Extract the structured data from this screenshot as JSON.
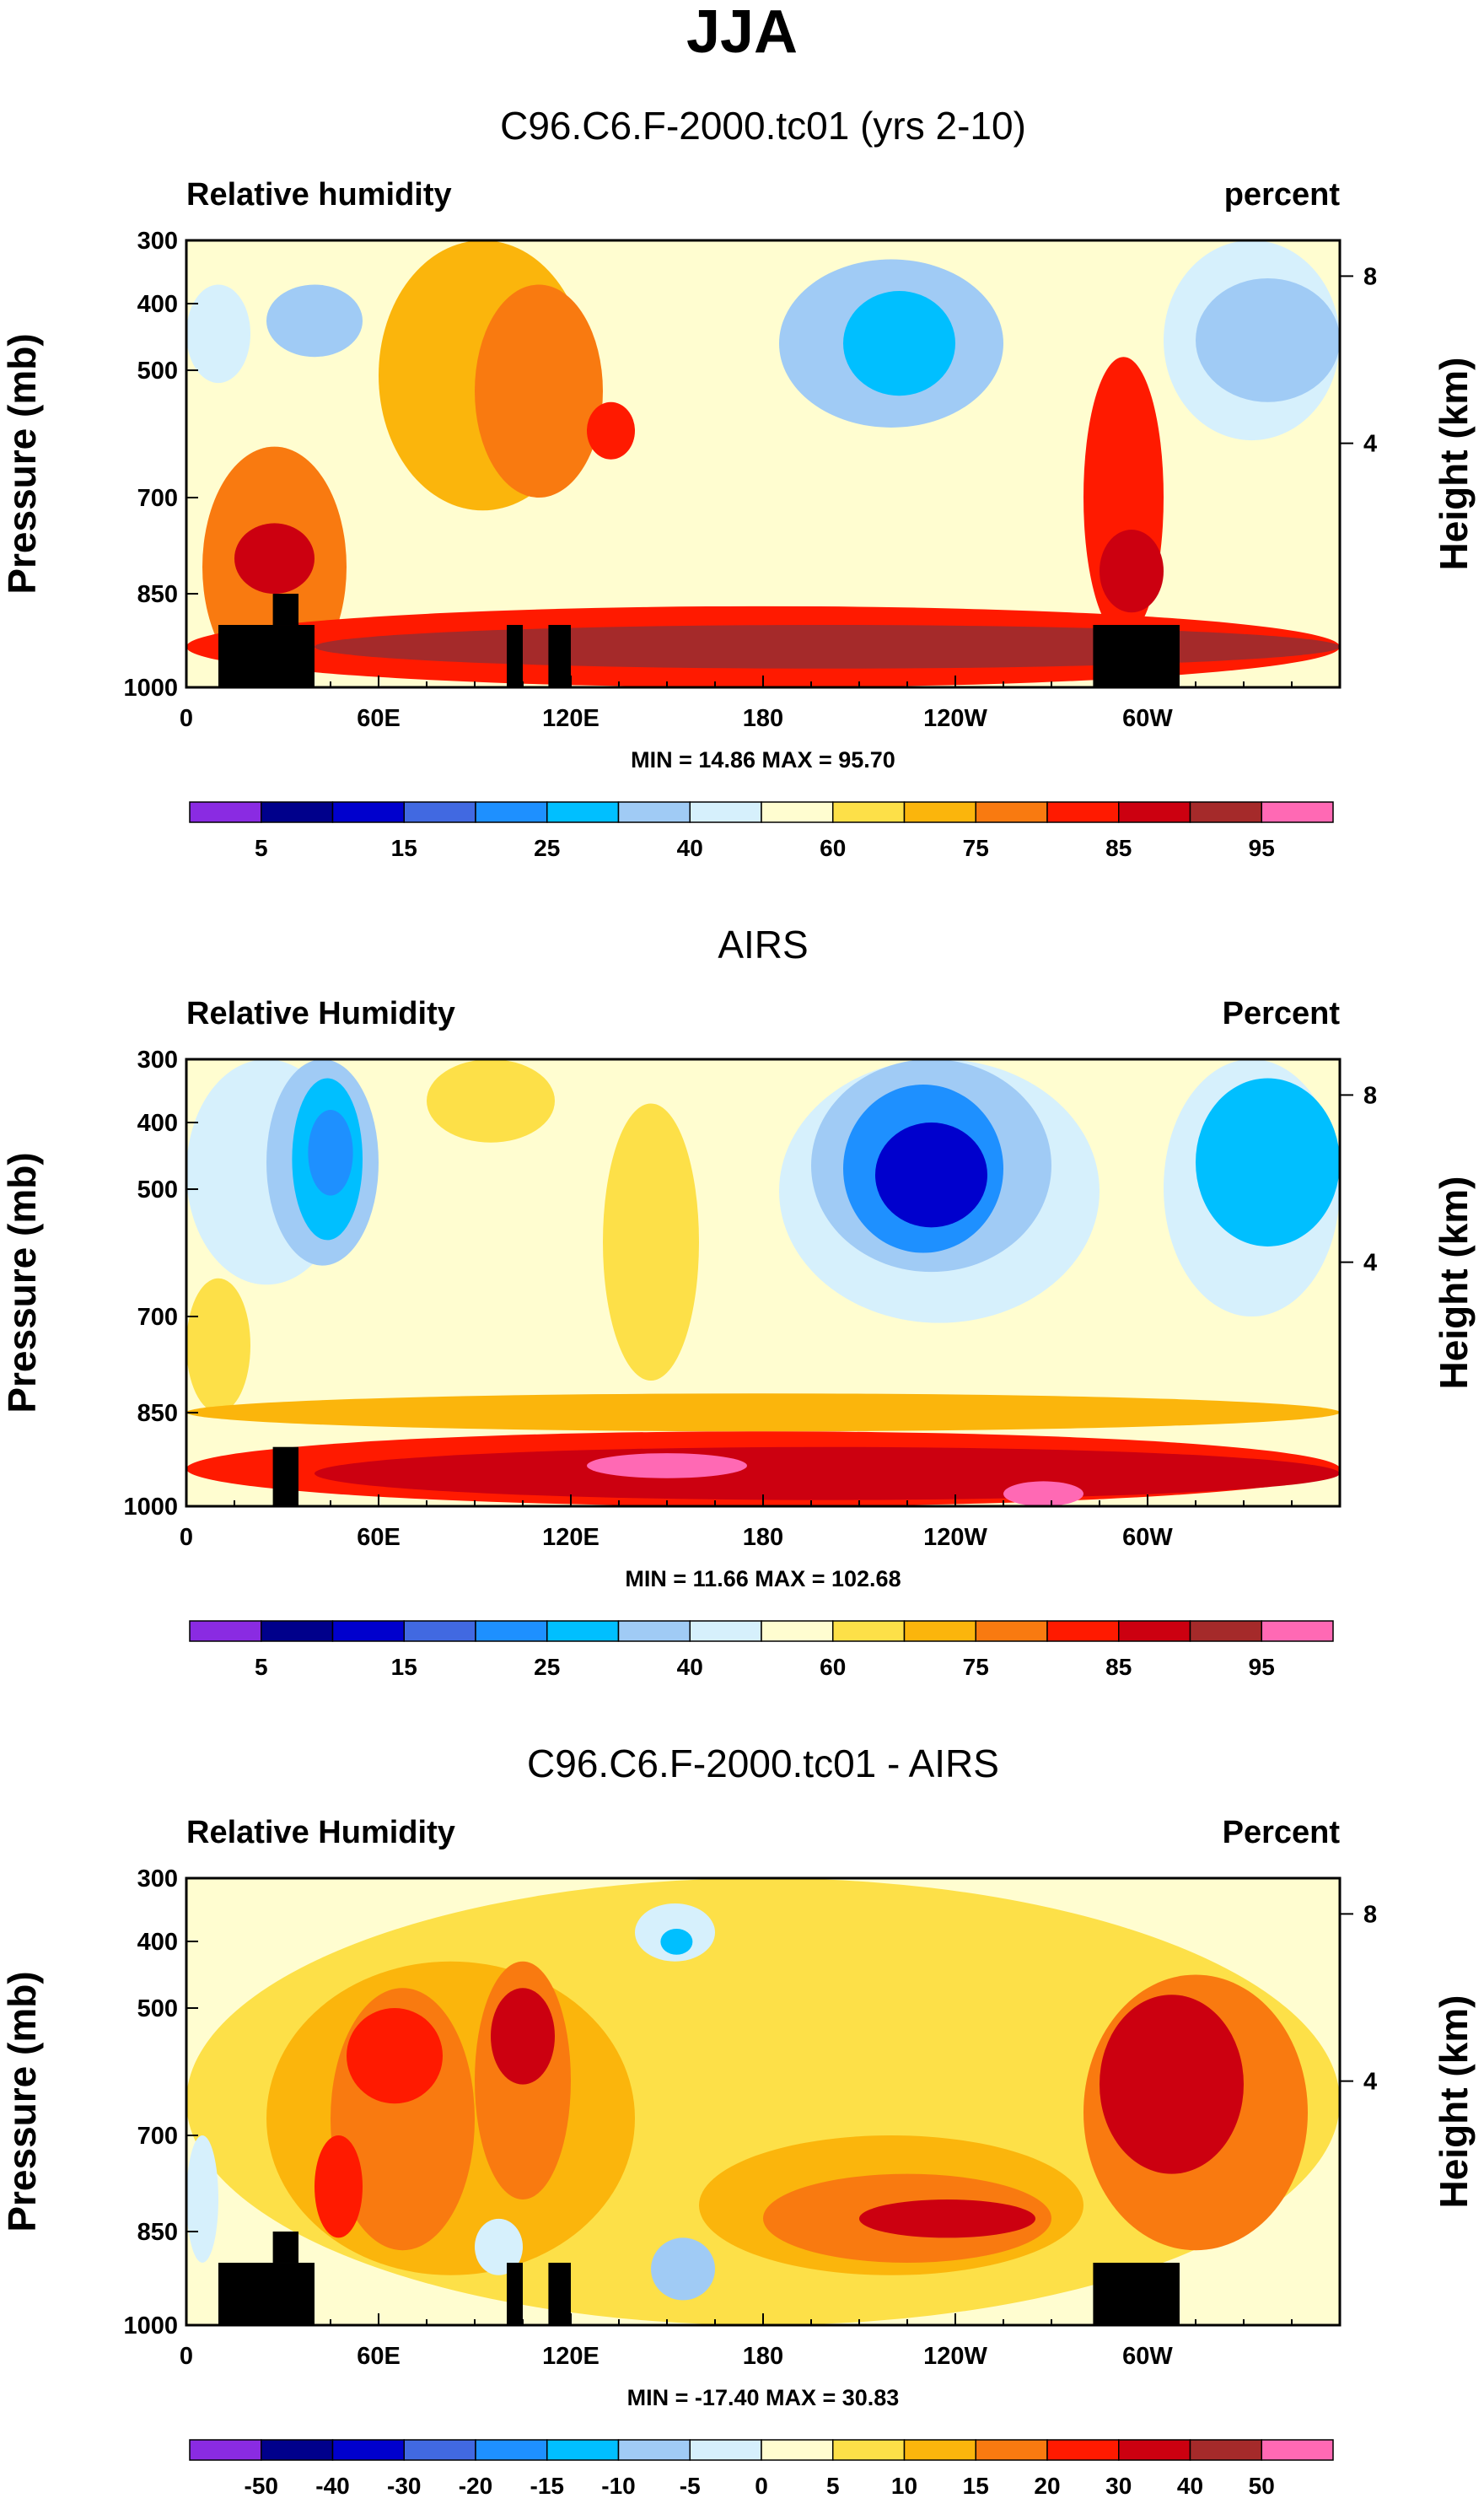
{
  "title": "JJA",
  "colorbar_main": {
    "colors": [
      "#8a2be2",
      "#00008b",
      "#0000cd",
      "#4169e1",
      "#1e90ff",
      "#00bfff",
      "#a0cbf5",
      "#d6f0fc",
      "#fffdd0",
      "#fde048",
      "#fbb50c",
      "#f97a10",
      "#ff1a00",
      "#cc0010",
      "#a52a2a",
      "#ff69b4"
    ],
    "labels": [
      "5",
      "15",
      "25",
      "40",
      "60",
      "75",
      "85",
      "95"
    ]
  },
  "colorbar_diff": {
    "colors": [
      "#8a2be2",
      "#00008b",
      "#0000cd",
      "#4169e1",
      "#1e90ff",
      "#00bfff",
      "#a0cbf5",
      "#d6f0fc",
      "#fffdd0",
      "#fde048",
      "#fbb50c",
      "#f97a10",
      "#ff1a00",
      "#cc0010",
      "#a52a2a",
      "#ff69b4"
    ],
    "labels": [
      "-50",
      "-40",
      "-30",
      "-20",
      "-15",
      "-10",
      "-5",
      "0",
      "5",
      "10",
      "15",
      "20",
      "30",
      "40",
      "50"
    ]
  },
  "chart_data": [
    {
      "type": "heatmap",
      "title": "C96.C6.F-2000.tc01 (yrs 2-10)",
      "left_label": "Relative humidity",
      "right_label": "percent",
      "ylabel": "Pressure (mb)",
      "ylabel_right": "Height (km)",
      "xticks": [
        "0",
        "60E",
        "120E",
        "180",
        "120W",
        "60W"
      ],
      "yticks": [
        "300",
        "400",
        "500",
        "700",
        "850",
        "1000"
      ],
      "yticks_right": [
        "8",
        "4"
      ],
      "ylim": [
        1000,
        300
      ],
      "xlim": [
        0,
        360
      ],
      "min_max_text": "MIN = 14.86  MAX = 95.70",
      "colorbar": "main",
      "regions": [
        {
          "level": 11,
          "lon": [
            5,
            50
          ],
          "p": [
            620,
            1000
          ]
        },
        {
          "level": 13,
          "lon": [
            15,
            40
          ],
          "p": [
            740,
            850
          ]
        },
        {
          "level": 6,
          "lon": [
            25,
            55
          ],
          "p": [
            370,
            480
          ]
        },
        {
          "level": 7,
          "lon": [
            0,
            20
          ],
          "p": [
            370,
            520
          ]
        },
        {
          "level": 10,
          "lon": [
            60,
            125
          ],
          "p": [
            300,
            720
          ]
        },
        {
          "level": 11,
          "lon": [
            90,
            130
          ],
          "p": [
            370,
            700
          ]
        },
        {
          "level": 12,
          "lon": [
            125,
            140
          ],
          "p": [
            550,
            640
          ]
        },
        {
          "level": 8,
          "lon": [
            155,
            230
          ],
          "p": [
            300,
            620
          ]
        },
        {
          "level": 6,
          "lon": [
            185,
            255
          ],
          "p": [
            330,
            590
          ]
        },
        {
          "level": 5,
          "lon": [
            205,
            240
          ],
          "p": [
            380,
            540
          ]
        },
        {
          "level": 12,
          "lon": [
            280,
            305
          ],
          "p": [
            480,
            920
          ]
        },
        {
          "level": 13,
          "lon": [
            285,
            305
          ],
          "p": [
            750,
            880
          ]
        },
        {
          "level": 7,
          "lon": [
            305,
            360
          ],
          "p": [
            300,
            610
          ]
        },
        {
          "level": 6,
          "lon": [
            315,
            360
          ],
          "p": [
            360,
            550
          ]
        },
        {
          "level": 12,
          "lon": [
            0,
            360
          ],
          "p": [
            870,
            1000
          ]
        },
        {
          "level": 14,
          "lon": [
            40,
            360
          ],
          "p": [
            900,
            970
          ]
        }
      ],
      "topography": [
        {
          "lon": [
            10,
            40
          ],
          "p": [
            900,
            1000
          ]
        },
        {
          "lon": [
            27,
            35
          ],
          "p": [
            850,
            900
          ]
        },
        {
          "lon": [
            100,
            105
          ],
          "p": [
            900,
            1000
          ]
        },
        {
          "lon": [
            113,
            120
          ],
          "p": [
            900,
            1000
          ]
        },
        {
          "lon": [
            283,
            310
          ],
          "p": [
            900,
            1000
          ]
        }
      ]
    },
    {
      "type": "heatmap",
      "title": "AIRS",
      "left_label": "Relative Humidity",
      "right_label": "Percent",
      "ylabel": "Pressure (mb)",
      "ylabel_right": "Height (km)",
      "xticks": [
        "0",
        "60E",
        "120E",
        "180",
        "120W",
        "60W"
      ],
      "yticks": [
        "300",
        "400",
        "500",
        "700",
        "850",
        "1000"
      ],
      "yticks_right": [
        "8",
        "4"
      ],
      "ylim": [
        1000,
        300
      ],
      "xlim": [
        0,
        360
      ],
      "min_max_text": "MIN = 11.66  MAX = 102.68",
      "colorbar": "main",
      "regions": [
        {
          "level": 7,
          "lon": [
            0,
            50
          ],
          "p": [
            300,
            650
          ]
        },
        {
          "level": 6,
          "lon": [
            25,
            60
          ],
          "p": [
            300,
            620
          ]
        },
        {
          "level": 5,
          "lon": [
            33,
            55
          ],
          "p": [
            330,
            580
          ]
        },
        {
          "level": 4,
          "lon": [
            38,
            52
          ],
          "p": [
            380,
            510
          ]
        },
        {
          "level": 9,
          "lon": [
            0,
            20
          ],
          "p": [
            640,
            850
          ]
        },
        {
          "level": 9,
          "lon": [
            75,
            115
          ],
          "p": [
            300,
            430
          ]
        },
        {
          "level": 9,
          "lon": [
            130,
            160
          ],
          "p": [
            370,
            800
          ]
        },
        {
          "level": 7,
          "lon": [
            185,
            285
          ],
          "p": [
            300,
            710
          ]
        },
        {
          "level": 6,
          "lon": [
            195,
            270
          ],
          "p": [
            300,
            630
          ]
        },
        {
          "level": 4,
          "lon": [
            205,
            255
          ],
          "p": [
            340,
            600
          ]
        },
        {
          "level": 2,
          "lon": [
            215,
            250
          ],
          "p": [
            400,
            560
          ]
        },
        {
          "level": 7,
          "lon": [
            305,
            360
          ],
          "p": [
            300,
            700
          ]
        },
        {
          "level": 5,
          "lon": [
            315,
            360
          ],
          "p": [
            330,
            590
          ]
        },
        {
          "level": 10,
          "lon": [
            0,
            360
          ],
          "p": [
            820,
            880
          ]
        },
        {
          "level": 12,
          "lon": [
            0,
            360
          ],
          "p": [
            880,
            1000
          ]
        },
        {
          "level": 13,
          "lon": [
            40,
            360
          ],
          "p": [
            905,
            990
          ]
        },
        {
          "level": 15,
          "lon": [
            125,
            175
          ],
          "p": [
            915,
            955
          ]
        },
        {
          "level": 15,
          "lon": [
            255,
            280
          ],
          "p": [
            960,
            1000
          ]
        }
      ],
      "topography": [
        {
          "lon": [
            27,
            35
          ],
          "p": [
            905,
            1000
          ]
        }
      ]
    },
    {
      "type": "heatmap",
      "title": "C96.C6.F-2000.tc01 - AIRS",
      "left_label": "Relative Humidity",
      "right_label": "Percent",
      "ylabel": "Pressure (mb)",
      "ylabel_right": "Height (km)",
      "xticks": [
        "0",
        "60E",
        "120E",
        "180",
        "120W",
        "60W"
      ],
      "yticks": [
        "300",
        "400",
        "500",
        "700",
        "850",
        "1000"
      ],
      "yticks_right": [
        "8",
        "4"
      ],
      "ylim": [
        1000,
        300
      ],
      "xlim": [
        0,
        360
      ],
      "min_max_text": "MIN = -17.40  MAX = 30.83",
      "colorbar": "diff",
      "regions": [
        {
          "level": 9,
          "lon": [
            0,
            360
          ],
          "p": [
            300,
            1000
          ]
        },
        {
          "level": 10,
          "lon": [
            25,
            140
          ],
          "p": [
            430,
            920
          ]
        },
        {
          "level": 11,
          "lon": [
            45,
            90
          ],
          "p": [
            470,
            880
          ]
        },
        {
          "level": 12,
          "lon": [
            50,
            80
          ],
          "p": [
            500,
            650
          ]
        },
        {
          "level": 12,
          "lon": [
            40,
            55
          ],
          "p": [
            700,
            860
          ]
        },
        {
          "level": 11,
          "lon": [
            90,
            120
          ],
          "p": [
            430,
            800
          ]
        },
        {
          "level": 13,
          "lon": [
            95,
            115
          ],
          "p": [
            470,
            620
          ]
        },
        {
          "level": 10,
          "lon": [
            160,
            280
          ],
          "p": [
            700,
            920
          ]
        },
        {
          "level": 11,
          "lon": [
            180,
            270
          ],
          "p": [
            760,
            900
          ]
        },
        {
          "level": 13,
          "lon": [
            210,
            265
          ],
          "p": [
            800,
            860
          ]
        },
        {
          "level": 11,
          "lon": [
            280,
            350
          ],
          "p": [
            450,
            880
          ]
        },
        {
          "level": 13,
          "lon": [
            285,
            330
          ],
          "p": [
            480,
            760
          ]
        },
        {
          "level": 7,
          "lon": [
            140,
            165
          ],
          "p": [
            340,
            430
          ]
        },
        {
          "level": 5,
          "lon": [
            148,
            158
          ],
          "p": [
            380,
            420
          ]
        },
        {
          "level": 6,
          "lon": [
            145,
            165
          ],
          "p": [
            860,
            960
          ]
        },
        {
          "level": 7,
          "lon": [
            0,
            10
          ],
          "p": [
            700,
            900
          ]
        },
        {
          "level": 7,
          "lon": [
            90,
            105
          ],
          "p": [
            830,
            920
          ]
        }
      ],
      "topography": [
        {
          "lon": [
            10,
            40
          ],
          "p": [
            900,
            1000
          ]
        },
        {
          "lon": [
            27,
            35
          ],
          "p": [
            850,
            900
          ]
        },
        {
          "lon": [
            100,
            105
          ],
          "p": [
            900,
            1000
          ]
        },
        {
          "lon": [
            113,
            120
          ],
          "p": [
            900,
            1000
          ]
        },
        {
          "lon": [
            283,
            310
          ],
          "p": [
            900,
            1000
          ]
        }
      ]
    }
  ]
}
